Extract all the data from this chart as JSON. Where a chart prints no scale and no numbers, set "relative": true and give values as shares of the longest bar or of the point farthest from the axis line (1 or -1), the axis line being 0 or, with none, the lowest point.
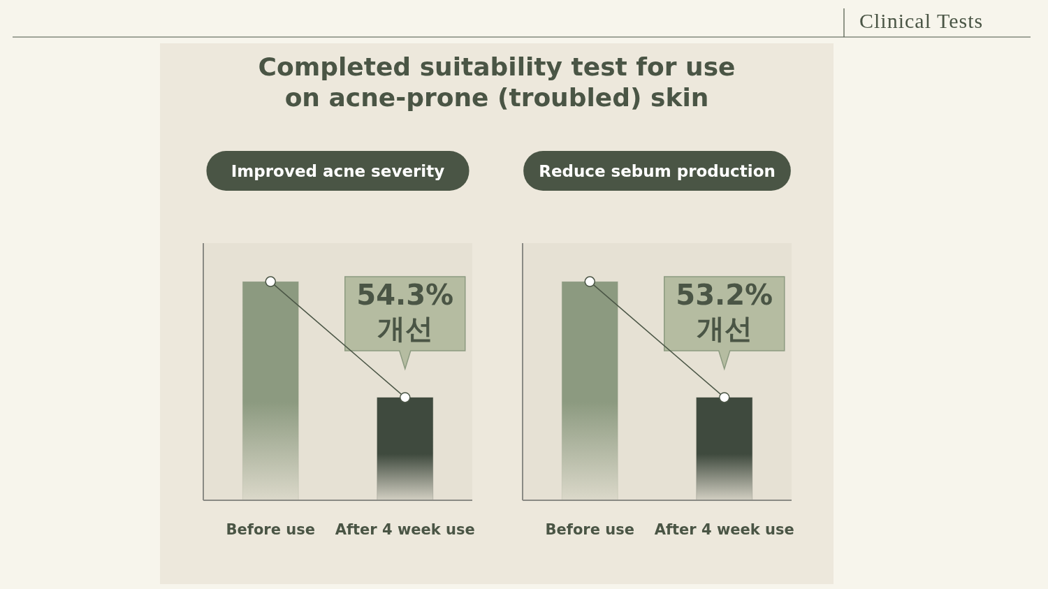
{
  "chart_data": [
    {
      "type": "other",
      "title": "Completed suitability test for use\non acne-prone (troubled) skin",
      "annotations": [
        "Clinical Tests"
      ]
    },
    {
      "type": "bar",
      "relative": true,
      "title": "Improved acne severity",
      "categories": [
        "Before use",
        "After 4 week use"
      ],
      "series": [
        {
          "type": "bar",
          "colors": [
            "#8c9a80",
            "#3f4a3e"
          ],
          "values": [
            1,
            0.47
          ]
        },
        {
          "type": "line",
          "color": "#4a5545",
          "marker": "circle",
          "values": [
            1,
            0.47
          ]
        }
      ],
      "annotations": [
        "54.3%\n개선"
      ]
    },
    {
      "type": "bar",
      "relative": true,
      "title": "Reduce sebum production",
      "categories": [
        "Before use",
        "After 4 week use"
      ],
      "series": [
        {
          "type": "bar",
          "colors": [
            "#8c9a80",
            "#3f4a3e"
          ],
          "values": [
            1,
            0.47
          ]
        },
        {
          "type": "line",
          "color": "#4a5545",
          "marker": "circle",
          "values": [
            1,
            0.47
          ]
        }
      ],
      "annotations": [
        "53.2%\n개선"
      ]
    }
  ]
}
